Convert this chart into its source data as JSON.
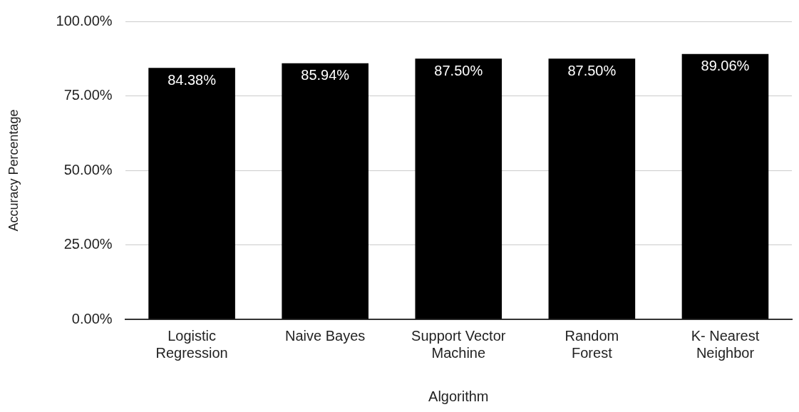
{
  "chart_data": {
    "type": "bar",
    "xlabel": "Algorithm",
    "ylabel": "Accuracy Percentage",
    "categories": [
      "Logistic Regression",
      "Naive Bayes",
      "Support Vector Machine",
      "Random Forest",
      "K- Nearest Neighbor"
    ],
    "values": [
      84.38,
      85.94,
      87.5,
      87.5,
      89.06
    ],
    "value_labels": [
      "84.38%",
      "85.94%",
      "87.50%",
      "87.50%",
      "89.06%"
    ],
    "color": "#000000",
    "ylim": [
      0,
      100
    ],
    "yticks": [
      {
        "value": 0,
        "label": "0.00%"
      },
      {
        "value": 25,
        "label": "25.00%"
      },
      {
        "value": 50,
        "label": "50.00%"
      },
      {
        "value": 75,
        "label": "75.00%"
      },
      {
        "value": 100,
        "label": "100.00%"
      }
    ],
    "grid": "y",
    "legend": false
  }
}
